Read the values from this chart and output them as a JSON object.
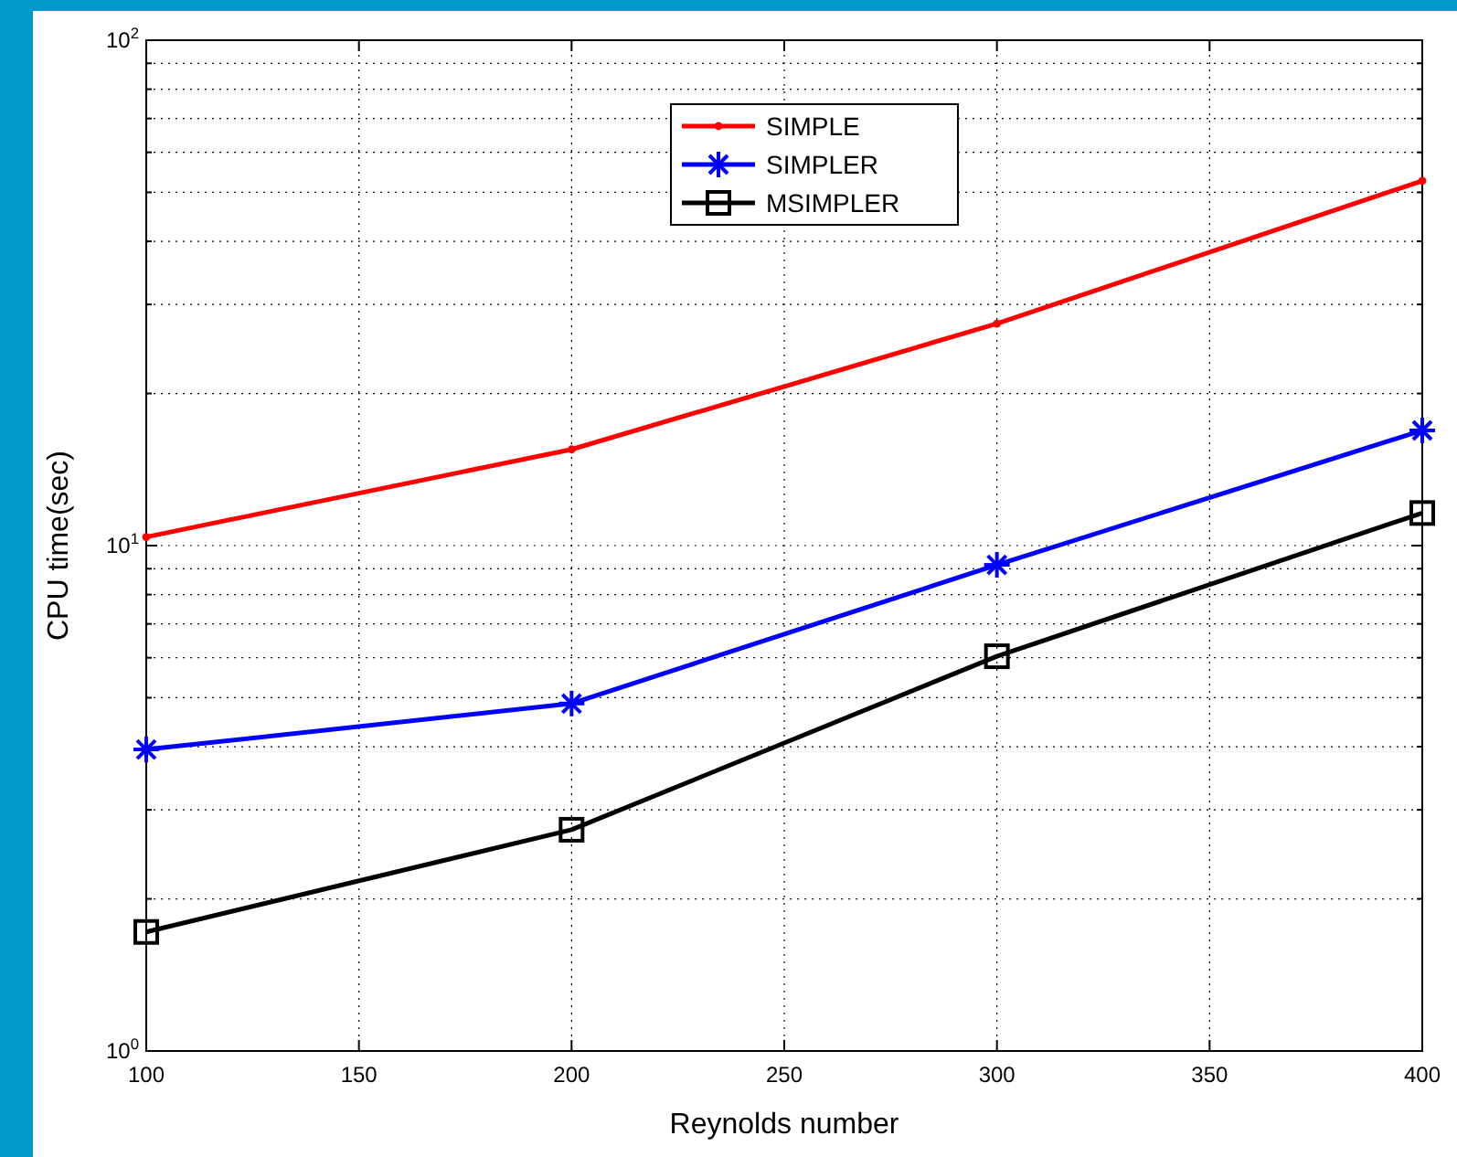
{
  "chart_data": {
    "type": "line",
    "xlabel": "Reynolds number",
    "ylabel": "CPU time(sec)",
    "log": "y",
    "x": [
      100,
      200,
      300,
      400
    ],
    "xlim": [
      100,
      400
    ],
    "xticks": [
      100,
      150,
      200,
      250,
      300,
      350,
      400
    ],
    "ylim": [
      1,
      100
    ],
    "yticks": [
      {
        "value": 1,
        "label": "10$^{0}$"
      },
      {
        "value": 2,
        "label": null
      },
      {
        "value": 3,
        "label": null
      },
      {
        "value": 4,
        "label": null
      },
      {
        "value": 5,
        "label": null
      },
      {
        "value": 6,
        "label": null
      },
      {
        "value": 7,
        "label": null
      },
      {
        "value": 8,
        "label": null
      },
      {
        "value": 9,
        "label": null
      },
      {
        "value": 10,
        "label": "10$^{1}$"
      },
      {
        "value": 20,
        "label": null
      },
      {
        "value": 30,
        "label": null
      },
      {
        "value": 40,
        "label": null
      },
      {
        "value": 50,
        "label": null
      },
      {
        "value": 60,
        "label": null
      },
      {
        "value": 70,
        "label": null
      },
      {
        "value": 80,
        "label": null
      },
      {
        "value": 90,
        "label": null
      },
      {
        "value": 100,
        "label": "10$^{2}$"
      }
    ],
    "grid": true,
    "legend": "top",
    "line_style": "solid",
    "series": [
      {
        "name": "SIMPLE",
        "color": "#ff0000",
        "marker": "circle",
        "values": [
          10.4,
          15.5,
          27.5,
          52.7
        ]
      },
      {
        "name": "SIMPLER",
        "color": "#0000ff",
        "marker": "cross",
        "values": [
          3.95,
          4.87,
          9.16,
          16.9
        ]
      },
      {
        "name": "MSIMPLER",
        "color": "#000000",
        "marker": "square",
        "values": [
          1.72,
          2.74,
          6.04,
          11.6
        ]
      }
    ]
  }
}
